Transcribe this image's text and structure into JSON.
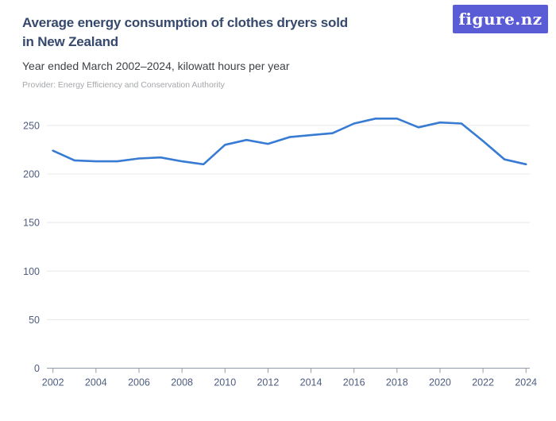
{
  "header": {
    "title_lines": [
      "Average energy consumption of clothes dryers sold",
      "in New Zealand"
    ],
    "subtitle": "Year ended March 2002–2024, kilowatt hours per year",
    "provider": "Provider: Energy Efficiency and Conservation Authority"
  },
  "logo": {
    "text": "figure.nz",
    "background": "#5a5cd6",
    "color": "#ffffff"
  },
  "chart_data": {
    "type": "line",
    "title": "Average energy consumption of clothes dryers sold in New Zealand",
    "subtitle": "Year ended March 2002–2024, kilowatt hours per year",
    "x": [
      2002,
      2003,
      2004,
      2005,
      2006,
      2007,
      2008,
      2009,
      2010,
      2011,
      2012,
      2013,
      2014,
      2015,
      2016,
      2017,
      2018,
      2019,
      2020,
      2021,
      2022,
      2023,
      2024
    ],
    "values": [
      224,
      214,
      213,
      213,
      216,
      217,
      213,
      210,
      230,
      235,
      231,
      238,
      240,
      242,
      252,
      257,
      257,
      248,
      253,
      252,
      234,
      215,
      210
    ],
    "units": "kilowatt hours per year",
    "xlabel": "",
    "ylabel": "",
    "xticks": [
      2002,
      2004,
      2006,
      2008,
      2010,
      2012,
      2014,
      2016,
      2018,
      2020,
      2022,
      2024
    ],
    "yticks": [
      0,
      50,
      100,
      150,
      200,
      250
    ],
    "xlim": [
      2002,
      2024
    ],
    "ylim": [
      0,
      265
    ],
    "grid": true,
    "legend": "none",
    "line_color": "#377bd2",
    "grid_color": "#e8e8e8",
    "axis_color": "#949cab",
    "label_color": "#4d5c80"
  }
}
